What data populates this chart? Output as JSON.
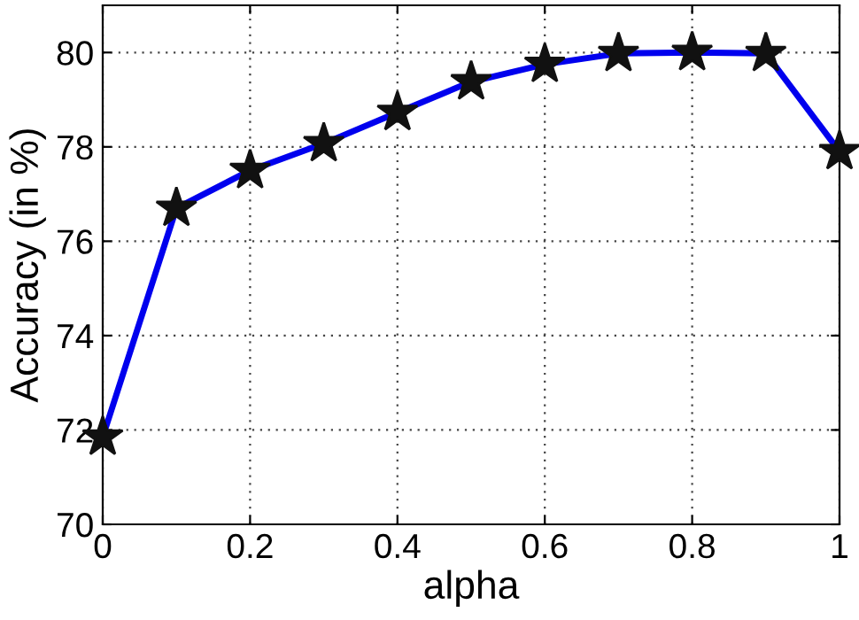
{
  "chart_data": {
    "type": "line",
    "xlabel": "alpha",
    "ylabel": "Accuracy (in %)",
    "x": [
      0,
      0.1,
      0.2,
      0.3,
      0.4,
      0.5,
      0.6,
      0.7,
      0.8,
      0.9,
      1
    ],
    "series": [
      {
        "color": "#0000ee",
        "values": [
          71.85,
          76.7,
          77.5,
          78.07,
          78.73,
          79.38,
          79.75,
          79.98,
          80.0,
          79.98,
          77.9
        ]
      }
    ],
    "xlim": [
      0,
      1
    ],
    "ylim": [
      70,
      81
    ],
    "xticks": [
      0,
      {
        "value": 0.2,
        "label": "0.2"
      },
      {
        "value": 0.4,
        "label": "0.4"
      },
      {
        "value": 0.6,
        "label": "0.6"
      },
      {
        "value": 0.8,
        "label": "0.8"
      },
      1
    ],
    "yticks": [
      70,
      72,
      74,
      76,
      78,
      80
    ],
    "grid": true,
    "marker": "star",
    "line_style": "solid",
    "legend": false
  }
}
